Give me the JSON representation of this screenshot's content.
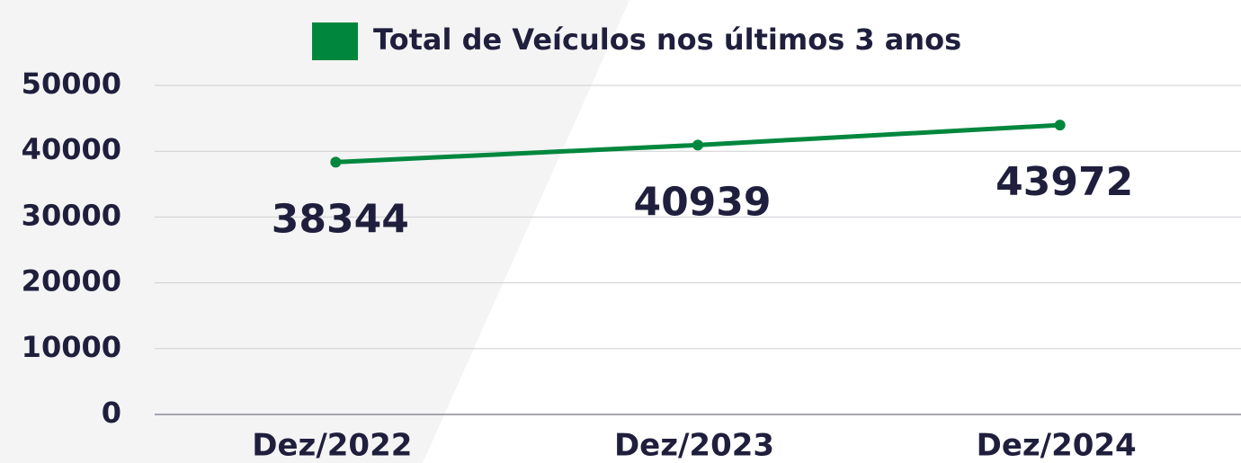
{
  "chart_data": {
    "type": "line",
    "categories": [
      "Dez/2022",
      "Dez/2023",
      "Dez/2024"
    ],
    "series": [
      {
        "name": "Total de Veículos nos últimos 3 anos",
        "color": "#00873e",
        "values": [
          38344,
          40939,
          43972
        ]
      }
    ],
    "ylim": [
      0,
      50000
    ],
    "yticks": [
      0,
      10000,
      20000,
      30000,
      40000,
      50000
    ],
    "grid": true,
    "legend": "top"
  }
}
